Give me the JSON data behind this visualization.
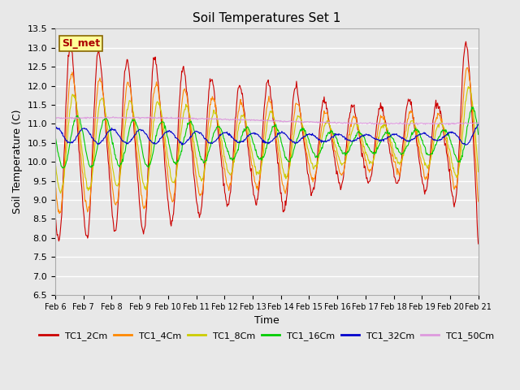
{
  "title": "Soil Temperatures Set 1",
  "xlabel": "Time",
  "ylabel": "Soil Temperature (C)",
  "ylim": [
    6.5,
    13.5
  ],
  "yticks": [
    6.5,
    7.0,
    7.5,
    8.0,
    8.5,
    9.0,
    9.5,
    10.0,
    10.5,
    11.0,
    11.5,
    12.0,
    12.5,
    13.0,
    13.5
  ],
  "line_colors": {
    "TC1_2Cm": "#CC0000",
    "TC1_4Cm": "#FF8800",
    "TC1_8Cm": "#CCCC00",
    "TC1_16Cm": "#00CC00",
    "TC1_32Cm": "#0000CC",
    "TC1_50Cm": "#DD99DD"
  },
  "annotation_text": "SI_met",
  "annotation_bg": "#FFFF99",
  "annotation_border": "#886600",
  "background_color": "#E8E8E8",
  "grid_color": "#FFFFFF",
  "x_tick_labels": [
    "Feb 6",
    "Feb 7",
    "Feb 8",
    "Feb 9",
    "Feb 10",
    "Feb 11",
    "Feb 12",
    "Feb 13",
    "Feb 14",
    "Feb 15",
    "Feb 16",
    "Feb 17",
    "Feb 18",
    "Feb 19",
    "Feb 20",
    "Feb 21"
  ],
  "figwidth": 6.4,
  "figheight": 4.8,
  "dpi": 100
}
